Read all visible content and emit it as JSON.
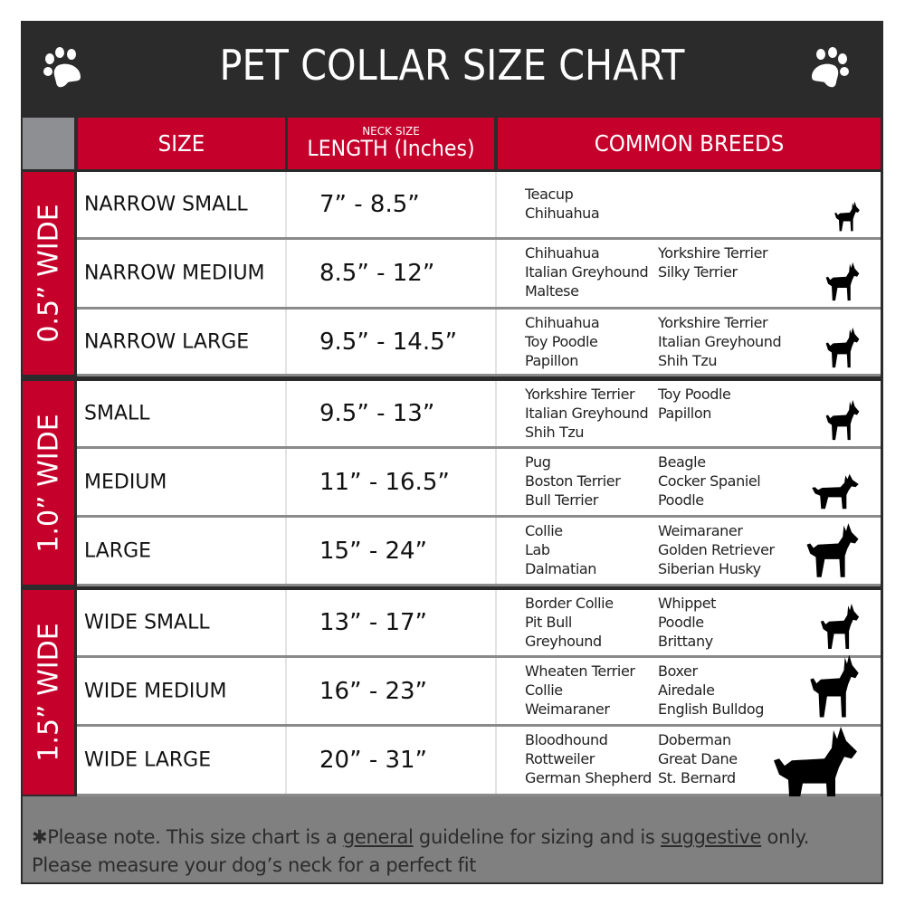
{
  "title": "PET COLLAR SIZE CHART",
  "headers": {
    "size": "SIZE",
    "length_small": "NECK SIZE",
    "length": "LENGTH (Inches)",
    "breeds": "COMMON BREEDS"
  },
  "colors": {
    "accent_red": "#c4002b",
    "dark": "#2b2b2b",
    "footer_gray": "#808080"
  },
  "groups": [
    {
      "label": "0.5” WIDE",
      "rows": [
        {
          "size": "NARROW SMALL",
          "length": "7” - 8.5”",
          "breeds_col1": [
            "Teacup",
            "Chihuahua"
          ],
          "breeds_col2": [],
          "icon": "yorkie-silhouette-icon"
        },
        {
          "size": "NARROW MEDIUM",
          "length": "8.5” - 12”",
          "breeds_col1": [
            "Chihuahua",
            "Italian Greyhound",
            "Maltese"
          ],
          "breeds_col2": [
            "Yorkshire Terrier",
            "Silky Terrier"
          ],
          "icon": "chihuahua-silhouette-icon"
        },
        {
          "size": "NARROW LARGE",
          "length": "9.5” - 14.5”",
          "breeds_col1": [
            "Chihuahua",
            "Toy Poodle",
            "Papillon"
          ],
          "breeds_col2": [
            "Yorkshire Terrier",
            "Italian Greyhound",
            "Shih Tzu"
          ],
          "icon": "pomeranian-silhouette-icon"
        }
      ]
    },
    {
      "label": "1.0” WIDE",
      "rows": [
        {
          "size": "SMALL",
          "length": "9.5” - 13”",
          "breeds_col1": [
            "Yorkshire Terrier",
            "Italian Greyhound",
            "Shih Tzu"
          ],
          "breeds_col2": [
            "Toy Poodle",
            "Papillon"
          ],
          "icon": "pomeranian-silhouette-icon"
        },
        {
          "size": "MEDIUM",
          "length": "11” - 16.5”",
          "breeds_col1": [
            "Pug",
            "Boston Terrier",
            "Bull Terrier"
          ],
          "breeds_col2": [
            "Beagle",
            "Cocker Spaniel",
            "Poodle"
          ],
          "icon": "dachshund-silhouette-icon"
        },
        {
          "size": "LARGE",
          "length": "15” - 24”",
          "breeds_col1": [
            "Collie",
            "Lab",
            "Dalmatian"
          ],
          "breeds_col2": [
            "Weimaraner",
            "Golden Retriever",
            "Siberian Husky"
          ],
          "icon": "shepherd-silhouette-icon"
        }
      ]
    },
    {
      "label": "1.5” WIDE",
      "rows": [
        {
          "size": "WIDE SMALL",
          "length": "13” - 17”",
          "breeds_col1": [
            "Border Collie",
            "Pit Bull",
            "Greyhound"
          ],
          "breeds_col2": [
            "Whippet",
            "Poodle",
            "Brittany"
          ],
          "icon": "bulldog-silhouette-icon"
        },
        {
          "size": "WIDE MEDIUM",
          "length": "16” - 23”",
          "breeds_col1": [
            "Wheaten Terrier",
            "Collie",
            "Weimaraner"
          ],
          "breeds_col2": [
            "Boxer",
            "Airedale",
            "English Bulldog"
          ],
          "icon": "pitbull-silhouette-icon"
        },
        {
          "size": "WIDE LARGE",
          "length": "20” - 31”",
          "breeds_col1": [
            "Bloodhound",
            "Rottweiler",
            "German Shepherd"
          ],
          "breeds_col2": [
            "Doberman",
            "Great Dane",
            "St. Bernard"
          ],
          "icon": "doberman-silhouette-icon"
        }
      ]
    }
  ],
  "footer": {
    "part1": "✱Please note. This size chart is a ",
    "u1": "general",
    "part2": " guideline for sizing and is ",
    "u2": "suggestive",
    "part3": " only.",
    "line2": "Please measure your dog’s neck for a perfect fit"
  }
}
